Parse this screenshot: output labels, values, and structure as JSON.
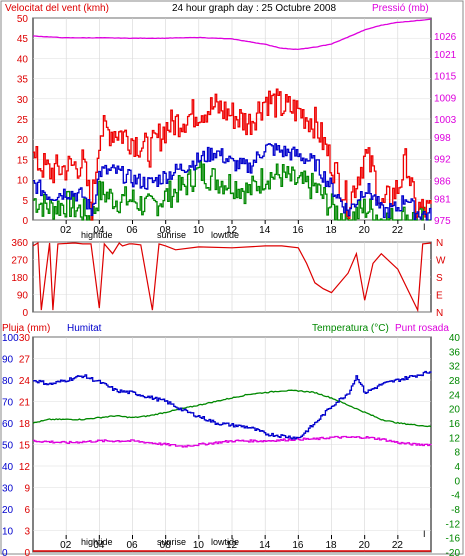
{
  "chart_data": [
    {
      "type": "line",
      "title": "24 hour graph day : 25 Octubre 2008",
      "ylabel_left": "Velocitat del vent (kmh)",
      "ylabel_right": "Pressió (mb)",
      "ylim_left": [
        0,
        50
      ],
      "ylim_right": [
        975,
        1031
      ],
      "yticks_left": [
        "0",
        "5",
        "10",
        "15",
        "20",
        "25",
        "30",
        "35",
        "40",
        "45",
        "50"
      ],
      "yticks_right": [
        "975",
        "981",
        "986",
        "992",
        "998",
        "1003",
        "1009",
        "1015",
        "1021",
        "1026"
      ],
      "xlim": [
        0,
        24
      ],
      "xticks": [
        "02",
        "04",
        "06",
        "08",
        "10",
        "12",
        "14",
        "16",
        "18",
        "20",
        "22"
      ],
      "x_markers": [
        "hightide",
        "sunrise",
        "lowtide"
      ],
      "end_marker": "I",
      "colors": {
        "gust": "#ee0000",
        "wind": "#0000cc",
        "gust_low": "#008800",
        "pressure": "#dd00dd"
      },
      "series": [
        {
          "name": "Pressió (mb)",
          "axis": "right",
          "x": [
            0,
            2,
            4,
            6,
            8,
            10,
            12,
            14,
            15,
            16,
            17,
            18,
            19,
            20,
            21,
            22,
            23,
            24
          ],
          "values": [
            1026,
            1025.5,
            1025.5,
            1025.4,
            1025.4,
            1025.6,
            1025.2,
            1023.7,
            1022.6,
            1022.3,
            1022.9,
            1023.8,
            1025.7,
            1027.7,
            1029.0,
            1029.8,
            1030.2,
            1030.7
          ]
        },
        {
          "axis": "left",
          "x": [
            0,
            1,
            2,
            3,
            3.5,
            4,
            5,
            6,
            7,
            8,
            9,
            10,
            11,
            12,
            13,
            14,
            15,
            16,
            17,
            18,
            19,
            20,
            20.5,
            21,
            22,
            22.5,
            23,
            24
          ],
          "values": [
            15,
            12,
            13,
            14,
            3,
            22,
            22,
            20,
            17,
            23,
            25,
            27,
            28,
            26,
            24,
            30,
            28,
            27,
            24,
            14,
            4,
            16,
            12,
            3,
            8,
            15,
            3,
            2
          ]
        },
        {
          "axis": "left",
          "x": [
            0,
            1,
            2,
            3,
            3.5,
            4,
            5,
            6,
            7,
            8,
            9,
            10,
            11,
            12,
            13,
            14,
            15,
            16,
            17,
            18,
            19,
            20,
            20.5,
            21,
            22,
            22.5,
            23,
            24
          ],
          "values": [
            9,
            6,
            7,
            6,
            2,
            12,
            12,
            10,
            9,
            11,
            13,
            15,
            17,
            14,
            13,
            18,
            17,
            16,
            14,
            8,
            2,
            8,
            6,
            2,
            3,
            6,
            2,
            1
          ]
        },
        {
          "axis": "left",
          "x": [
            0,
            1,
            2,
            3,
            3.5,
            4,
            5,
            6,
            7,
            8,
            9,
            10,
            11,
            12,
            13,
            14,
            15,
            16,
            17,
            18,
            19,
            20,
            20.5,
            21,
            22,
            22.5,
            23,
            24
          ],
          "values": [
            5,
            3,
            4,
            2,
            0,
            7,
            5,
            5,
            3,
            6,
            8,
            12,
            10,
            9,
            7,
            11,
            11,
            9,
            8,
            3,
            0,
            3,
            2,
            0,
            0,
            1,
            0,
            0
          ]
        }
      ]
    },
    {
      "type": "line",
      "ylim": [
        0,
        360
      ],
      "yticks_left": [
        "0",
        "90",
        "180",
        "270",
        "360"
      ],
      "yticks_right": [
        "N",
        "E",
        "S",
        "W",
        "N"
      ],
      "color": "#dd0000",
      "series": [
        {
          "x": [
            0,
            0.3,
            0.5,
            1,
            1.2,
            1.5,
            2.5,
            3,
            3.5,
            4,
            4.3,
            4.8,
            5.2,
            5.4,
            5.8,
            6,
            6.5,
            7.2,
            7.6,
            8,
            8.6,
            10,
            12,
            14,
            15,
            16,
            16.5,
            17,
            17.5,
            18,
            19,
            19.5,
            20,
            20.5,
            21,
            22,
            23.2,
            23.5,
            24
          ],
          "values": [
            340,
            355,
            10,
            355,
            10,
            350,
            355,
            350,
            350,
            20,
            350,
            300,
            355,
            340,
            350,
            350,
            345,
            10,
            350,
            340,
            320,
            335,
            330,
            340,
            340,
            330,
            250,
            150,
            120,
            100,
            200,
            300,
            60,
            250,
            300,
            220,
            10,
            350,
            355
          ]
        }
      ]
    },
    {
      "type": "line",
      "ylabel_left_1": "Pluja (mm)",
      "ylabel_left_2": "Humitat",
      "ylabel_right": "Temperatura (°C)",
      "ylabel_right_2": "Punt rosada",
      "yticks_rain": [
        "0",
        "3",
        "6",
        "9",
        "12",
        "15",
        "18",
        "21",
        "24",
        "27",
        "30"
      ],
      "yticks_hum": [
        "0",
        "10",
        "20",
        "30",
        "40",
        "50",
        "60",
        "70",
        "80",
        "90",
        "100"
      ],
      "yticks_temp": [
        "-20",
        "-16",
        "-12",
        "-8",
        "-4",
        "0",
        "4",
        "8",
        "12",
        "16",
        "20",
        "24",
        "28",
        "32",
        "36",
        "40"
      ],
      "rain_range": [
        0,
        30
      ],
      "humidity_range": [
        0,
        100
      ],
      "temperature_range": [
        -20,
        40
      ],
      "xticks": [
        "02",
        "04",
        "06",
        "08",
        "10",
        "12",
        "14",
        "16",
        "18",
        "20",
        "22"
      ],
      "x_markers": [
        "hightide",
        "sunrise",
        "lowtide"
      ],
      "end_marker": "I",
      "colors": {
        "rain": "#dd0000",
        "humidity": "#0000cc",
        "temperature": "#008800",
        "dewpoint": "#dd00dd"
      },
      "series": [
        {
          "name": "Humitat",
          "axis": "hum",
          "x": [
            0,
            1,
            2,
            3,
            4,
            5,
            6,
            7,
            8,
            9,
            10,
            11,
            12,
            13,
            14,
            15,
            16,
            17,
            18,
            19,
            19.5,
            20,
            21,
            22,
            23,
            24
          ],
          "values": [
            80,
            78,
            80,
            82,
            79,
            75,
            74,
            72,
            70,
            66,
            63,
            60,
            59,
            58,
            55,
            54,
            53,
            60,
            68,
            74,
            82,
            74,
            78,
            80,
            82,
            84
          ]
        },
        {
          "name": "Temperatura (°C)",
          "axis": "temp",
          "x": [
            0,
            1,
            2,
            3,
            4,
            5,
            6,
            7,
            8,
            9,
            10,
            11,
            12,
            13,
            14,
            15,
            16,
            17,
            18,
            19,
            20,
            21,
            22,
            23,
            24
          ],
          "values": [
            16,
            17,
            17,
            17,
            17.5,
            18,
            17.5,
            18,
            19,
            20,
            21,
            22,
            23,
            24,
            24.5,
            25,
            25,
            24.5,
            23,
            21,
            19,
            17,
            16,
            15.5,
            15
          ]
        },
        {
          "name": "Punt rosada",
          "axis": "temp",
          "x": [
            0,
            2,
            4,
            6,
            8,
            9,
            10,
            12,
            14,
            16,
            17,
            18,
            19,
            20,
            21,
            22,
            23,
            24
          ],
          "values": [
            11,
            10.5,
            11,
            11,
            10,
            9.5,
            10,
            11,
            11,
            11.5,
            11.5,
            12,
            12,
            12,
            11.5,
            10.5,
            10,
            10
          ]
        },
        {
          "name": "Pluja (mm)",
          "axis": "rain",
          "x": [
            0,
            24
          ],
          "values": [
            0,
            0
          ]
        }
      ]
    }
  ]
}
